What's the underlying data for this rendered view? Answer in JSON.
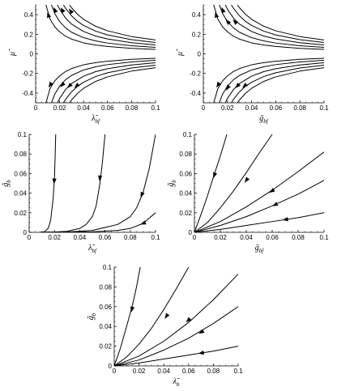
{
  "chart_data": [
    {
      "type": "line",
      "panel": "top-left",
      "xlabel": "λ̃",
      "xlabel_sub": "bf",
      "ylabel": "μ̃",
      "ylabel_sub": "",
      "xlim": [
        0,
        0.1
      ],
      "ylim": [
        -0.5,
        0.5
      ],
      "xticks": [
        "0",
        "0.02",
        "0.04",
        "0.06",
        "0.08",
        "0.1"
      ],
      "yticks": [
        "-0.4",
        "-0.2",
        "0",
        "0.2",
        "0.4"
      ],
      "grid": false,
      "series": [
        {
          "x": [
            0.0086,
            0.012,
            0.016,
            0.02,
            0.025,
            0.03,
            0.04,
            0.05,
            0.06,
            0.08,
            0.1
          ],
          "y": [
            -0.5,
            -0.355,
            -0.275,
            -0.225,
            -0.18,
            -0.15,
            -0.112,
            -0.09,
            -0.075,
            -0.056,
            -0.045
          ]
        },
        {
          "x": [
            0.0132,
            0.016,
            0.02,
            0.025,
            0.03,
            0.04,
            0.05,
            0.06,
            0.08,
            0.1
          ],
          "y": [
            -0.5,
            -0.41,
            -0.33,
            -0.264,
            -0.22,
            -0.165,
            -0.132,
            -0.11,
            -0.083,
            -0.066
          ]
        },
        {
          "x": [
            0.0182,
            0.02,
            0.025,
            0.03,
            0.04,
            0.05,
            0.06,
            0.08,
            0.1
          ],
          "y": [
            -0.5,
            -0.455,
            -0.364,
            -0.303,
            -0.228,
            -0.182,
            -0.152,
            -0.114,
            -0.091
          ]
        },
        {
          "x": [
            0.0232,
            0.025,
            0.03,
            0.035,
            0.04,
            0.05,
            0.06,
            0.08,
            0.1
          ],
          "y": [
            -0.5,
            -0.464,
            -0.387,
            -0.331,
            -0.29,
            -0.232,
            -0.193,
            -0.145,
            -0.116
          ]
        },
        {
          "x": [
            0.0282,
            0.03,
            0.035,
            0.04,
            0.05,
            0.06,
            0.08,
            0.1
          ],
          "y": [
            -0.5,
            -0.47,
            -0.403,
            -0.352,
            -0.282,
            -0.235,
            -0.176,
            -0.141
          ]
        },
        {
          "x": [
            0.0086,
            0.012,
            0.016,
            0.02,
            0.025,
            0.03,
            0.04,
            0.05,
            0.06,
            0.08,
            0.1
          ],
          "y": [
            0.5,
            0.355,
            0.275,
            0.225,
            0.18,
            0.15,
            0.112,
            0.09,
            0.075,
            0.056,
            0.045
          ]
        },
        {
          "x": [
            0.0132,
            0.016,
            0.02,
            0.025,
            0.03,
            0.04,
            0.05,
            0.06,
            0.08,
            0.1
          ],
          "y": [
            0.5,
            0.41,
            0.33,
            0.264,
            0.22,
            0.165,
            0.132,
            0.11,
            0.083,
            0.066
          ]
        },
        {
          "x": [
            0.0182,
            0.02,
            0.025,
            0.03,
            0.04,
            0.05,
            0.06,
            0.08,
            0.1
          ],
          "y": [
            0.5,
            0.455,
            0.364,
            0.303,
            0.228,
            0.182,
            0.152,
            0.114,
            0.091
          ]
        },
        {
          "x": [
            0.0232,
            0.025,
            0.03,
            0.035,
            0.04,
            0.05,
            0.06,
            0.08,
            0.1
          ],
          "y": [
            0.5,
            0.464,
            0.387,
            0.331,
            0.29,
            0.232,
            0.193,
            0.145,
            0.116
          ]
        },
        {
          "x": [
            0.0282,
            0.03,
            0.035,
            0.04,
            0.05,
            0.06,
            0.08,
            0.1
          ],
          "y": [
            0.5,
            0.47,
            0.403,
            0.352,
            0.282,
            0.235,
            0.176,
            0.141
          ]
        }
      ],
      "arrows": [
        {
          "x": 0.0105,
          "y": 0.4,
          "dir": "up"
        },
        {
          "x": 0.016,
          "y": 0.45,
          "dir": "up"
        },
        {
          "x": 0.022,
          "y": 0.45,
          "dir": "up"
        },
        {
          "x": 0.029,
          "y": 0.44,
          "dir": "up"
        },
        {
          "x": 0.012,
          "y": -0.32,
          "dir": "down"
        },
        {
          "x": 0.022,
          "y": -0.32,
          "dir": "down"
        },
        {
          "x": 0.028,
          "y": -0.33,
          "dir": "down"
        },
        {
          "x": 0.034,
          "y": -0.33,
          "dir": "down"
        }
      ]
    },
    {
      "type": "line",
      "panel": "top-right",
      "xlabel": "g̃",
      "xlabel_sub": "bf",
      "ylabel": "μ̃",
      "ylabel_sub": "",
      "xlim": [
        0,
        0.1
      ],
      "ylim": [
        -0.5,
        0.5
      ],
      "xticks": [
        "0",
        "0.02",
        "0.04",
        "0.06",
        "0.08",
        "0.1"
      ],
      "yticks": [
        "-0.4",
        "-0.2",
        "0",
        "0.2",
        "0.4"
      ],
      "grid": false,
      "series": [
        {
          "x": [
            0.0086,
            0.012,
            0.016,
            0.02,
            0.025,
            0.03,
            0.04,
            0.05,
            0.06,
            0.08,
            0.1
          ],
          "y": [
            -0.5,
            -0.355,
            -0.275,
            -0.225,
            -0.18,
            -0.15,
            -0.112,
            -0.09,
            -0.075,
            -0.056,
            -0.045
          ]
        },
        {
          "x": [
            0.0132,
            0.016,
            0.02,
            0.025,
            0.03,
            0.04,
            0.05,
            0.06,
            0.08,
            0.1
          ],
          "y": [
            -0.5,
            -0.41,
            -0.33,
            -0.264,
            -0.22,
            -0.165,
            -0.132,
            -0.11,
            -0.083,
            -0.066
          ]
        },
        {
          "x": [
            0.0182,
            0.02,
            0.025,
            0.03,
            0.04,
            0.05,
            0.06,
            0.08,
            0.1
          ],
          "y": [
            -0.5,
            -0.455,
            -0.364,
            -0.303,
            -0.228,
            -0.182,
            -0.152,
            -0.114,
            -0.091
          ]
        },
        {
          "x": [
            0.0232,
            0.025,
            0.03,
            0.035,
            0.04,
            0.05,
            0.06,
            0.08,
            0.1
          ],
          "y": [
            -0.5,
            -0.464,
            -0.387,
            -0.331,
            -0.29,
            -0.232,
            -0.193,
            -0.145,
            -0.116
          ]
        },
        {
          "x": [
            0.0282,
            0.03,
            0.035,
            0.04,
            0.05,
            0.06,
            0.08,
            0.1
          ],
          "y": [
            -0.5,
            -0.47,
            -0.403,
            -0.352,
            -0.282,
            -0.235,
            -0.176,
            -0.141
          ]
        },
        {
          "x": [
            0.0086,
            0.012,
            0.016,
            0.02,
            0.025,
            0.03,
            0.04,
            0.05,
            0.06,
            0.08,
            0.1
          ],
          "y": [
            0.5,
            0.355,
            0.275,
            0.225,
            0.18,
            0.15,
            0.112,
            0.09,
            0.075,
            0.056,
            0.045
          ]
        },
        {
          "x": [
            0.0132,
            0.016,
            0.02,
            0.025,
            0.03,
            0.04,
            0.05,
            0.06,
            0.08,
            0.1
          ],
          "y": [
            0.5,
            0.41,
            0.33,
            0.264,
            0.22,
            0.165,
            0.132,
            0.11,
            0.083,
            0.066
          ]
        },
        {
          "x": [
            0.0182,
            0.02,
            0.025,
            0.03,
            0.04,
            0.05,
            0.06,
            0.08,
            0.1
          ],
          "y": [
            0.5,
            0.455,
            0.364,
            0.303,
            0.228,
            0.182,
            0.152,
            0.114,
            0.091
          ]
        },
        {
          "x": [
            0.0232,
            0.025,
            0.03,
            0.035,
            0.04,
            0.05,
            0.06,
            0.08,
            0.1
          ],
          "y": [
            0.5,
            0.464,
            0.387,
            0.331,
            0.29,
            0.232,
            0.193,
            0.145,
            0.116
          ]
        },
        {
          "x": [
            0.0282,
            0.03,
            0.035,
            0.04,
            0.05,
            0.06,
            0.08,
            0.1
          ],
          "y": [
            0.5,
            0.47,
            0.403,
            0.352,
            0.282,
            0.235,
            0.176,
            0.141
          ]
        }
      ],
      "arrows": [
        {
          "x": 0.0105,
          "y": 0.4,
          "dir": "up"
        },
        {
          "x": 0.016,
          "y": 0.45,
          "dir": "up"
        },
        {
          "x": 0.02,
          "y": 0.33,
          "dir": "up"
        },
        {
          "x": 0.026,
          "y": 0.33,
          "dir": "up"
        },
        {
          "x": 0.012,
          "y": -0.32,
          "dir": "down"
        },
        {
          "x": 0.02,
          "y": -0.35,
          "dir": "down"
        },
        {
          "x": 0.028,
          "y": -0.33,
          "dir": "down"
        },
        {
          "x": 0.034,
          "y": -0.33,
          "dir": "down"
        }
      ]
    },
    {
      "type": "line",
      "panel": "middle-left",
      "xlabel": "λ̃",
      "xlabel_sub": "bf",
      "ylabel": "g̃",
      "ylabel_sub": "b",
      "xlim": [
        0,
        0.1
      ],
      "ylim": [
        0,
        0.1
      ],
      "xticks": [
        "0",
        "0.02",
        "0.04",
        "0.06",
        "0.08",
        "0.1"
      ],
      "yticks": [
        "0",
        "0.02",
        "0.04",
        "0.06",
        "0.08",
        "0.1"
      ],
      "grid": false,
      "series": [
        {
          "x": [
            0.008,
            0.012,
            0.015,
            0.017,
            0.019,
            0.02,
            0.0205,
            0.021
          ],
          "y": [
            0,
            0.0005,
            0.004,
            0.012,
            0.035,
            0.055,
            0.075,
            0.1
          ]
        },
        {
          "x": [
            0.008,
            0.02,
            0.03,
            0.04,
            0.045,
            0.05,
            0.053,
            0.056,
            0.058,
            0.06
          ],
          "y": [
            0,
            0.0003,
            0.001,
            0.004,
            0.008,
            0.016,
            0.027,
            0.05,
            0.072,
            0.1
          ]
        },
        {
          "x": [
            0.008,
            0.03,
            0.05,
            0.07,
            0.08,
            0.085,
            0.09,
            0.095,
            0.1
          ],
          "y": [
            0,
            0.0003,
            0.002,
            0.008,
            0.016,
            0.025,
            0.04,
            0.065,
            0.1
          ]
        },
        {
          "x": [
            0.008,
            0.05,
            0.07,
            0.08,
            0.09,
            0.1
          ],
          "y": [
            0,
            0.0005,
            0.002,
            0.004,
            0.009,
            0.02
          ]
        }
      ],
      "arrows": [
        {
          "x": 0.0198,
          "y": 0.052,
          "dir": "down"
        },
        {
          "x": 0.0559,
          "y": 0.055,
          "dir": "down"
        },
        {
          "x": 0.089,
          "y": 0.038,
          "dir": "down"
        },
        {
          "x": 0.09,
          "y": 0.009,
          "dir": "down"
        }
      ]
    },
    {
      "type": "line",
      "panel": "middle-right",
      "xlabel": "g̃",
      "xlabel_sub": "bf",
      "ylabel": "g̃",
      "ylabel_sub": "b",
      "xlim": [
        0,
        0.1
      ],
      "ylim": [
        0,
        0.1
      ],
      "xticks": [
        "0",
        "0.02",
        "0.04",
        "0.06",
        "0.08",
        "0.1"
      ],
      "yticks": [
        "0",
        "0.02",
        "0.04",
        "0.06",
        "0.08",
        "0.1"
      ],
      "grid": false,
      "series": [
        {
          "x": [
            0,
            0.005,
            0.01,
            0.015,
            0.02,
            0.025
          ],
          "y": [
            0,
            0.018,
            0.037,
            0.058,
            0.078,
            0.1
          ]
        },
        {
          "x": [
            0,
            0.01,
            0.02,
            0.03,
            0.04,
            0.05,
            0.06
          ],
          "y": [
            0,
            0.01,
            0.025,
            0.042,
            0.061,
            0.081,
            0.1
          ]
        },
        {
          "x": [
            0,
            0.02,
            0.04,
            0.06,
            0.08,
            0.1
          ],
          "y": [
            0,
            0.011,
            0.026,
            0.043,
            0.062,
            0.082
          ]
        },
        {
          "x": [
            0,
            0.02,
            0.04,
            0.06,
            0.08,
            0.1
          ],
          "y": [
            0,
            0.007,
            0.016,
            0.027,
            0.039,
            0.053
          ]
        },
        {
          "x": [
            0,
            0.02,
            0.04,
            0.06,
            0.08,
            0.1
          ],
          "y": [
            0,
            0.003,
            0.007,
            0.011,
            0.015,
            0.02
          ]
        }
      ],
      "arrows": [
        {
          "x": 0.0153,
          "y": 0.058,
          "dir": "down"
        },
        {
          "x": 0.04,
          "y": 0.053,
          "dir": "down"
        },
        {
          "x": 0.0595,
          "y": 0.042,
          "dir": "down"
        },
        {
          "x": 0.062,
          "y": 0.028,
          "dir": "down"
        },
        {
          "x": 0.07,
          "y": 0.013,
          "dir": "down"
        }
      ]
    },
    {
      "type": "line",
      "panel": "bottom",
      "xlabel": "λ̃",
      "xlabel_sub": "b",
      "ylabel": "g̃",
      "ylabel_sub": "b",
      "xlim": [
        0,
        0.1
      ],
      "ylim": [
        0,
        0.1
      ],
      "xticks": [
        "0",
        "0.02",
        "0.04",
        "0.06",
        "0.08",
        "0.1"
      ],
      "yticks": [
        "0",
        "0.02",
        "0.04",
        "0.06",
        "0.08",
        "0.1"
      ],
      "grid": false,
      "series": [
        {
          "x": [
            0,
            0.005,
            0.01,
            0.015,
            0.018,
            0.021
          ],
          "y": [
            0,
            0.018,
            0.04,
            0.063,
            0.08,
            0.1
          ]
        },
        {
          "x": [
            0,
            0.01,
            0.02,
            0.03,
            0.04,
            0.05,
            0.06
          ],
          "y": [
            0,
            0.009,
            0.022,
            0.038,
            0.057,
            0.078,
            0.1
          ]
        },
        {
          "x": [
            0,
            0.02,
            0.04,
            0.06,
            0.08,
            0.1
          ],
          "y": [
            0,
            0.01,
            0.025,
            0.044,
            0.067,
            0.093
          ]
        },
        {
          "x": [
            0,
            0.02,
            0.04,
            0.06,
            0.08,
            0.1
          ],
          "y": [
            0,
            0.006,
            0.016,
            0.028,
            0.043,
            0.06
          ]
        },
        {
          "x": [
            0,
            0.02,
            0.04,
            0.06,
            0.08,
            0.1
          ],
          "y": [
            0,
            0.003,
            0.007,
            0.011,
            0.015,
            0.02
          ]
        }
      ],
      "arrows": [
        {
          "x": 0.0142,
          "y": 0.057,
          "dir": "down"
        },
        {
          "x": 0.042,
          "y": 0.05,
          "dir": "down"
        },
        {
          "x": 0.0595,
          "y": 0.046,
          "dir": "down"
        },
        {
          "x": 0.07,
          "y": 0.034,
          "dir": "down"
        },
        {
          "x": 0.07,
          "y": 0.013,
          "dir": "down"
        }
      ]
    }
  ]
}
